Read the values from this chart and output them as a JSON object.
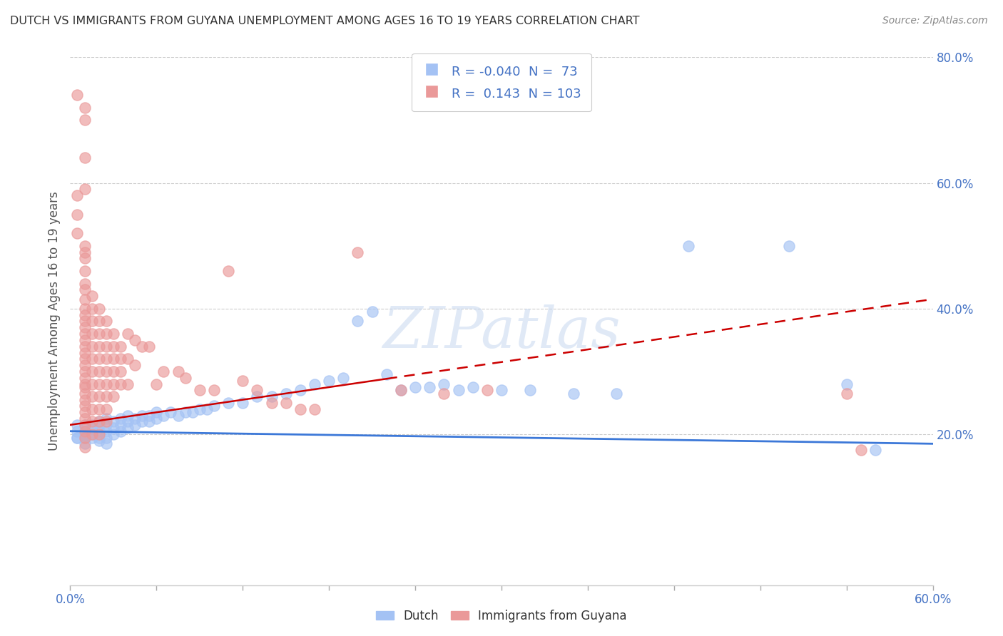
{
  "title": "DUTCH VS IMMIGRANTS FROM GUYANA UNEMPLOYMENT AMONG AGES 16 TO 19 YEARS CORRELATION CHART",
  "source": "Source: ZipAtlas.com",
  "ylabel": "Unemployment Among Ages 16 to 19 years",
  "ylabel_right_ticks": [
    "80.0%",
    "60.0%",
    "40.0%",
    "20.0%"
  ],
  "ylabel_right_vals": [
    0.8,
    0.6,
    0.4,
    0.2
  ],
  "legend_dutch_R": "-0.040",
  "legend_dutch_N": "73",
  "legend_guyana_R": "0.143",
  "legend_guyana_N": "103",
  "dutch_color": "#a4c2f4",
  "guyana_color": "#ea9999",
  "dutch_trend_color": "#3c78d8",
  "guyana_trend_color": "#cc0000",
  "background_color": "#ffffff",
  "watermark_text": "ZIPatlas",
  "xlim": [
    0.0,
    0.6
  ],
  "ylim": [
    -0.04,
    0.8
  ],
  "dutch_trend": [
    0.205,
    0.185
  ],
  "guyana_trend": [
    0.215,
    0.415
  ],
  "dutch_points": [
    [
      0.005,
      0.195
    ],
    [
      0.005,
      0.215
    ],
    [
      0.005,
      0.205
    ],
    [
      0.005,
      0.195
    ],
    [
      0.01,
      0.215
    ],
    [
      0.01,
      0.205
    ],
    [
      0.01,
      0.2
    ],
    [
      0.01,
      0.195
    ],
    [
      0.01,
      0.185
    ],
    [
      0.015,
      0.215
    ],
    [
      0.015,
      0.21
    ],
    [
      0.015,
      0.2
    ],
    [
      0.015,
      0.195
    ],
    [
      0.02,
      0.22
    ],
    [
      0.02,
      0.215
    ],
    [
      0.02,
      0.205
    ],
    [
      0.02,
      0.195
    ],
    [
      0.02,
      0.19
    ],
    [
      0.025,
      0.225
    ],
    [
      0.025,
      0.215
    ],
    [
      0.025,
      0.205
    ],
    [
      0.025,
      0.195
    ],
    [
      0.025,
      0.185
    ],
    [
      0.03,
      0.22
    ],
    [
      0.03,
      0.21
    ],
    [
      0.03,
      0.2
    ],
    [
      0.035,
      0.225
    ],
    [
      0.035,
      0.215
    ],
    [
      0.035,
      0.205
    ],
    [
      0.04,
      0.23
    ],
    [
      0.04,
      0.22
    ],
    [
      0.04,
      0.21
    ],
    [
      0.045,
      0.225
    ],
    [
      0.045,
      0.215
    ],
    [
      0.05,
      0.23
    ],
    [
      0.05,
      0.22
    ],
    [
      0.055,
      0.23
    ],
    [
      0.055,
      0.22
    ],
    [
      0.06,
      0.235
    ],
    [
      0.06,
      0.225
    ],
    [
      0.065,
      0.23
    ],
    [
      0.07,
      0.235
    ],
    [
      0.075,
      0.23
    ],
    [
      0.08,
      0.235
    ],
    [
      0.085,
      0.235
    ],
    [
      0.09,
      0.24
    ],
    [
      0.095,
      0.24
    ],
    [
      0.1,
      0.245
    ],
    [
      0.11,
      0.25
    ],
    [
      0.12,
      0.25
    ],
    [
      0.13,
      0.26
    ],
    [
      0.14,
      0.26
    ],
    [
      0.15,
      0.265
    ],
    [
      0.16,
      0.27
    ],
    [
      0.17,
      0.28
    ],
    [
      0.18,
      0.285
    ],
    [
      0.19,
      0.29
    ],
    [
      0.2,
      0.38
    ],
    [
      0.21,
      0.395
    ],
    [
      0.22,
      0.295
    ],
    [
      0.23,
      0.27
    ],
    [
      0.24,
      0.275
    ],
    [
      0.25,
      0.275
    ],
    [
      0.26,
      0.28
    ],
    [
      0.27,
      0.27
    ],
    [
      0.28,
      0.275
    ],
    [
      0.3,
      0.27
    ],
    [
      0.32,
      0.27
    ],
    [
      0.35,
      0.265
    ],
    [
      0.38,
      0.265
    ],
    [
      0.43,
      0.5
    ],
    [
      0.5,
      0.5
    ],
    [
      0.54,
      0.28
    ],
    [
      0.56,
      0.175
    ]
  ],
  "guyana_points": [
    [
      0.005,
      0.74
    ],
    [
      0.01,
      0.72
    ],
    [
      0.01,
      0.7
    ],
    [
      0.01,
      0.64
    ],
    [
      0.01,
      0.59
    ],
    [
      0.005,
      0.58
    ],
    [
      0.005,
      0.55
    ],
    [
      0.005,
      0.52
    ],
    [
      0.01,
      0.5
    ],
    [
      0.01,
      0.49
    ],
    [
      0.01,
      0.48
    ],
    [
      0.01,
      0.46
    ],
    [
      0.01,
      0.44
    ],
    [
      0.01,
      0.43
    ],
    [
      0.01,
      0.415
    ],
    [
      0.01,
      0.4
    ],
    [
      0.01,
      0.39
    ],
    [
      0.01,
      0.38
    ],
    [
      0.01,
      0.37
    ],
    [
      0.01,
      0.36
    ],
    [
      0.01,
      0.35
    ],
    [
      0.01,
      0.34
    ],
    [
      0.01,
      0.33
    ],
    [
      0.01,
      0.32
    ],
    [
      0.01,
      0.31
    ],
    [
      0.01,
      0.3
    ],
    [
      0.01,
      0.29
    ],
    [
      0.01,
      0.28
    ],
    [
      0.01,
      0.275
    ],
    [
      0.01,
      0.265
    ],
    [
      0.01,
      0.255
    ],
    [
      0.01,
      0.245
    ],
    [
      0.01,
      0.235
    ],
    [
      0.01,
      0.225
    ],
    [
      0.01,
      0.215
    ],
    [
      0.01,
      0.205
    ],
    [
      0.01,
      0.195
    ],
    [
      0.01,
      0.18
    ],
    [
      0.015,
      0.42
    ],
    [
      0.015,
      0.4
    ],
    [
      0.015,
      0.38
    ],
    [
      0.015,
      0.36
    ],
    [
      0.015,
      0.34
    ],
    [
      0.015,
      0.32
    ],
    [
      0.015,
      0.3
    ],
    [
      0.015,
      0.28
    ],
    [
      0.015,
      0.26
    ],
    [
      0.015,
      0.24
    ],
    [
      0.015,
      0.22
    ],
    [
      0.015,
      0.2
    ],
    [
      0.02,
      0.4
    ],
    [
      0.02,
      0.38
    ],
    [
      0.02,
      0.36
    ],
    [
      0.02,
      0.34
    ],
    [
      0.02,
      0.32
    ],
    [
      0.02,
      0.3
    ],
    [
      0.02,
      0.28
    ],
    [
      0.02,
      0.26
    ],
    [
      0.02,
      0.24
    ],
    [
      0.02,
      0.22
    ],
    [
      0.02,
      0.2
    ],
    [
      0.025,
      0.38
    ],
    [
      0.025,
      0.36
    ],
    [
      0.025,
      0.34
    ],
    [
      0.025,
      0.32
    ],
    [
      0.025,
      0.3
    ],
    [
      0.025,
      0.28
    ],
    [
      0.025,
      0.26
    ],
    [
      0.025,
      0.24
    ],
    [
      0.025,
      0.22
    ],
    [
      0.03,
      0.36
    ],
    [
      0.03,
      0.34
    ],
    [
      0.03,
      0.32
    ],
    [
      0.03,
      0.3
    ],
    [
      0.03,
      0.28
    ],
    [
      0.03,
      0.26
    ],
    [
      0.035,
      0.34
    ],
    [
      0.035,
      0.32
    ],
    [
      0.035,
      0.3
    ],
    [
      0.035,
      0.28
    ],
    [
      0.04,
      0.36
    ],
    [
      0.04,
      0.32
    ],
    [
      0.04,
      0.28
    ],
    [
      0.045,
      0.35
    ],
    [
      0.045,
      0.31
    ],
    [
      0.05,
      0.34
    ],
    [
      0.055,
      0.34
    ],
    [
      0.06,
      0.28
    ],
    [
      0.065,
      0.3
    ],
    [
      0.075,
      0.3
    ],
    [
      0.08,
      0.29
    ],
    [
      0.09,
      0.27
    ],
    [
      0.1,
      0.27
    ],
    [
      0.11,
      0.46
    ],
    [
      0.12,
      0.285
    ],
    [
      0.13,
      0.27
    ],
    [
      0.14,
      0.25
    ],
    [
      0.15,
      0.25
    ],
    [
      0.16,
      0.24
    ],
    [
      0.17,
      0.24
    ],
    [
      0.2,
      0.49
    ],
    [
      0.23,
      0.27
    ],
    [
      0.26,
      0.265
    ],
    [
      0.29,
      0.27
    ],
    [
      0.54,
      0.265
    ],
    [
      0.55,
      0.175
    ]
  ]
}
